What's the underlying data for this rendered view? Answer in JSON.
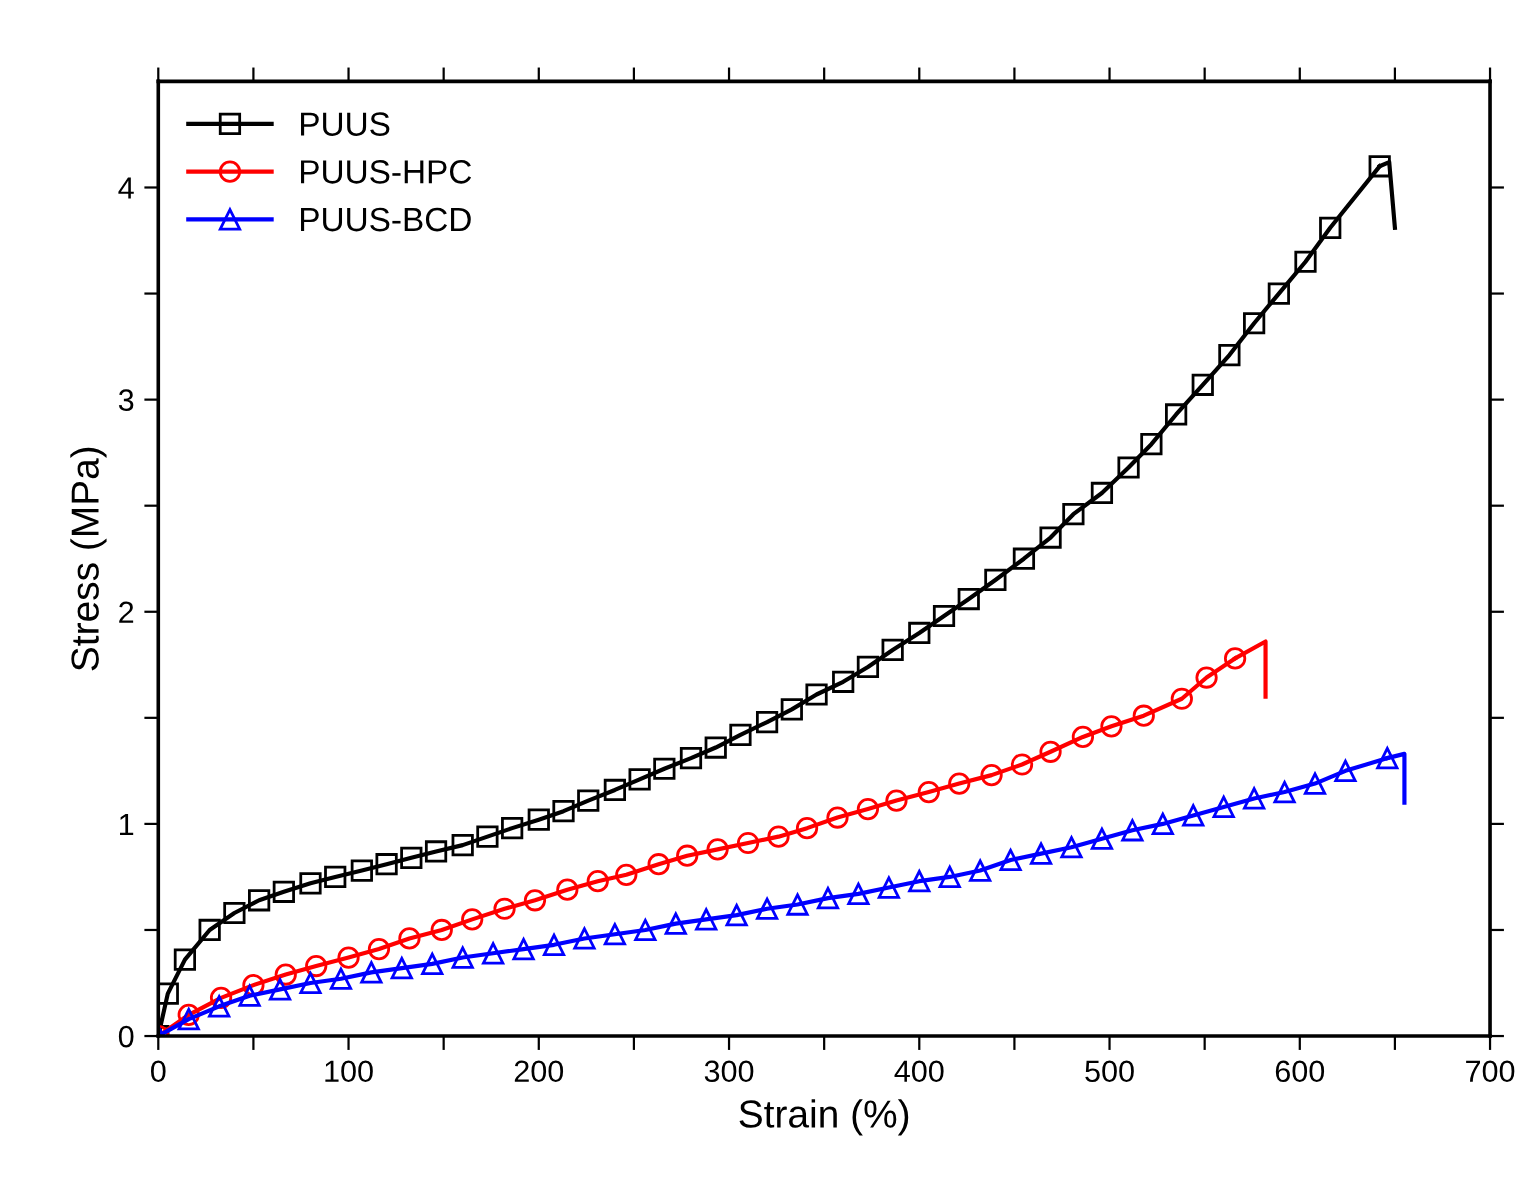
{
  "chart_data": {
    "type": "line",
    "xlabel": "Strain (%)",
    "ylabel": "Stress (MPa)",
    "xlim": [
      0,
      700
    ],
    "ylim": [
      0,
      4.5
    ],
    "xticks": [
      0,
      {
        "value": 50,
        "label": null
      },
      100,
      {
        "value": 150,
        "label": null
      },
      200,
      {
        "value": 250,
        "label": null
      },
      300,
      {
        "value": 350,
        "label": null
      },
      400,
      {
        "value": 450,
        "label": null
      },
      500,
      {
        "value": 550,
        "label": null
      },
      600,
      {
        "value": 650,
        "label": null
      },
      700
    ],
    "yticks": [
      0,
      {
        "value": 0.5,
        "label": null
      },
      1,
      {
        "value": 1.5,
        "label": null
      },
      2,
      {
        "value": 2.5,
        "label": null
      },
      3,
      {
        "value": 3.5,
        "label": null
      },
      4
    ],
    "grid": false,
    "legend": "top left",
    "line_style": "solid",
    "series": [
      {
        "name": "PUUS",
        "color": "#000000",
        "marker": "square",
        "x": [
          0,
          5,
          14,
          27,
          40,
          53,
          66,
          80,
          93,
          107,
          120,
          133,
          146,
          160,
          173,
          186,
          200,
          213,
          226,
          240,
          253,
          266,
          280,
          293,
          306,
          320,
          333,
          346,
          360,
          373,
          386,
          400,
          413,
          426,
          440,
          455,
          469,
          481,
          496,
          510,
          522,
          535,
          549,
          563,
          576,
          589,
          603,
          616,
          642
        ],
        "values": [
          0,
          0.2,
          0.36,
          0.5,
          0.58,
          0.64,
          0.68,
          0.72,
          0.75,
          0.78,
          0.81,
          0.84,
          0.87,
          0.9,
          0.94,
          0.98,
          1.02,
          1.06,
          1.11,
          1.16,
          1.21,
          1.26,
          1.31,
          1.36,
          1.42,
          1.48,
          1.54,
          1.61,
          1.67,
          1.74,
          1.82,
          1.9,
          1.98,
          2.06,
          2.15,
          2.25,
          2.35,
          2.46,
          2.56,
          2.68,
          2.79,
          2.93,
          3.07,
          3.21,
          3.36,
          3.5,
          3.65,
          3.81,
          4.1
        ]
      },
      {
        "color": "#000000",
        "marker": "none",
        "x": [
          642,
          647,
          650
        ],
        "values": [
          4.1,
          4.12,
          3.81
        ]
      },
      {
        "name": "PUUS-HPC",
        "color": "#ff0000",
        "marker": "circle",
        "x": [
          0,
          16,
          33,
          50,
          67,
          83,
          100,
          116,
          132,
          149,
          165,
          182,
          198,
          215,
          231,
          246,
          263,
          278,
          294,
          310,
          326,
          341,
          357,
          373,
          388,
          405,
          421,
          438,
          454,
          469,
          486,
          501,
          518,
          538,
          551,
          566
        ],
        "values": [
          0,
          0.1,
          0.18,
          0.24,
          0.29,
          0.33,
          0.37,
          0.41,
          0.46,
          0.5,
          0.55,
          0.6,
          0.64,
          0.69,
          0.73,
          0.76,
          0.81,
          0.85,
          0.88,
          0.91,
          0.94,
          0.98,
          1.03,
          1.07,
          1.11,
          1.15,
          1.19,
          1.23,
          1.28,
          1.34,
          1.41,
          1.46,
          1.51,
          1.59,
          1.69,
          1.78
        ]
      },
      {
        "color": "#ff0000",
        "marker": "none",
        "x": [
          566,
          582,
          582
        ],
        "values": [
          1.78,
          1.86,
          1.6
        ]
      },
      {
        "name": "PUUS-BCD",
        "color": "#0000ff",
        "marker": "triangle",
        "x": [
          0,
          16,
          32,
          48,
          64,
          80,
          96,
          112,
          128,
          144,
          160,
          176,
          192,
          208,
          224,
          240,
          256,
          272,
          288,
          304,
          320,
          336,
          352,
          368,
          384,
          400,
          416,
          432,
          448,
          464,
          480,
          496,
          512,
          528,
          544,
          560,
          576,
          592,
          608,
          624,
          646
        ],
        "values": [
          0,
          0.08,
          0.14,
          0.19,
          0.22,
          0.25,
          0.27,
          0.3,
          0.32,
          0.34,
          0.37,
          0.39,
          0.41,
          0.43,
          0.46,
          0.48,
          0.5,
          0.53,
          0.55,
          0.57,
          0.6,
          0.62,
          0.65,
          0.67,
          0.7,
          0.73,
          0.75,
          0.78,
          0.83,
          0.86,
          0.89,
          0.93,
          0.97,
          1.0,
          1.04,
          1.08,
          1.12,
          1.15,
          1.19,
          1.25,
          1.31
        ]
      },
      {
        "color": "#0000ff",
        "marker": "none",
        "x": [
          646,
          655,
          655
        ],
        "values": [
          1.31,
          1.33,
          1.1
        ]
      }
    ]
  }
}
